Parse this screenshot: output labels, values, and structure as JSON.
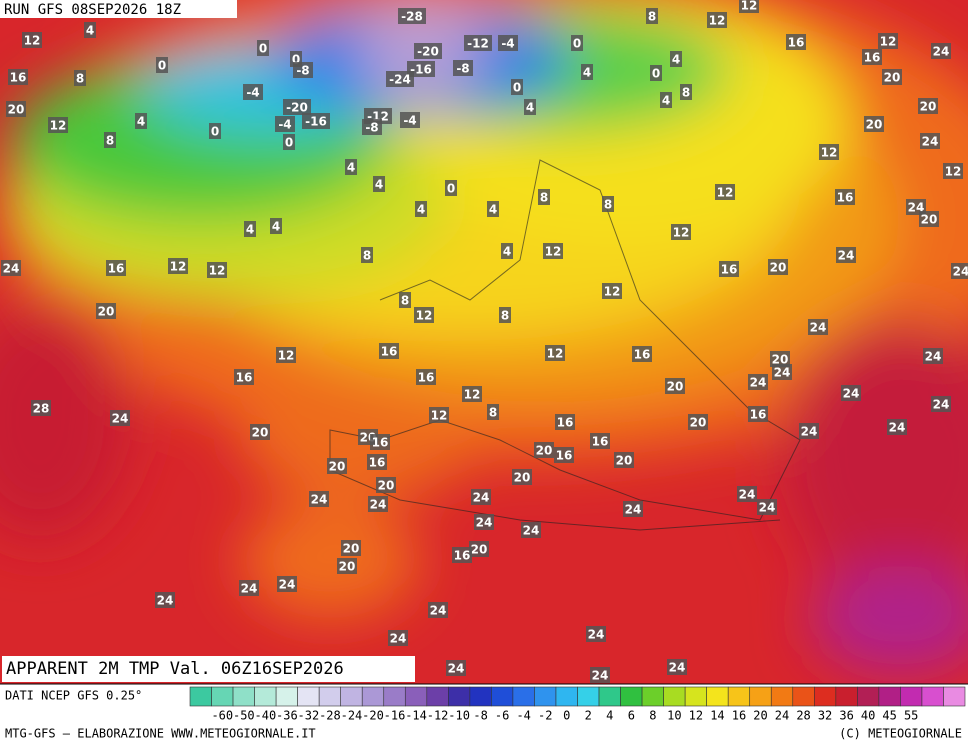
{
  "header": {
    "run": "RUN GFS 08SEP2026 18Z"
  },
  "footer": {
    "title": "APPARENT 2M TMP Val. 06Z16SEP2026"
  },
  "map": {
    "labels": [
      "4",
      "12",
      "16",
      "8",
      "0",
      "0",
      "0",
      "-8",
      "-28",
      "-20",
      "-12",
      "-4",
      "-16",
      "-8",
      "-24",
      "0",
      "8",
      "12",
      "12",
      "16",
      "12",
      "24",
      "16",
      "20",
      "4",
      "0",
      "4",
      "8",
      "4",
      "4",
      "0",
      "-4",
      "4",
      "12",
      "20",
      "8",
      "0",
      "-20",
      "-4",
      "-16",
      "-12",
      "-8",
      "-4",
      "0",
      "20",
      "20",
      "24",
      "12",
      "12",
      "4",
      "4",
      "0",
      "8",
      "8",
      "12",
      "16",
      "24",
      "20",
      "4",
      "4",
      "4",
      "4",
      "12",
      "8",
      "4",
      "12",
      "24",
      "24",
      "16",
      "12",
      "12",
      "16",
      "20",
      "24",
      "12",
      "8",
      "20",
      "12",
      "8",
      "24",
      "12",
      "16",
      "12",
      "16",
      "20",
      "24",
      "24",
      "24",
      "16",
      "16",
      "12",
      "20",
      "24",
      "28",
      "24",
      "8",
      "12",
      "16",
      "24",
      "20",
      "20",
      "16",
      "16",
      "20",
      "24",
      "24",
      "16",
      "20",
      "16",
      "16",
      "20",
      "20",
      "20",
      "20",
      "24",
      "24",
      "24",
      "24",
      "24",
      "24",
      "24",
      "24",
      "20",
      "20",
      "16",
      "20",
      "24",
      "24",
      "24",
      "24",
      "24",
      "24",
      "24",
      "24",
      "24"
    ]
  },
  "legend": {
    "source": "DATI NCEP GFS 0.25°",
    "swatch_colors": [
      "#3cc9a0",
      "#66d6b4",
      "#8fe0c8",
      "#b4ead9",
      "#d6f2ea",
      "#e4e4f4",
      "#d2cdec",
      "#c0b4e2",
      "#ab98d6",
      "#9a7cc8",
      "#8a5fba",
      "#6c3fa8",
      "#3d2fa8",
      "#2233c0",
      "#1f4ed8",
      "#2a6fe8",
      "#2f93ee",
      "#2fb6f0",
      "#35d0e8",
      "#2fc88a",
      "#30c040",
      "#6ccf2a",
      "#a8dc22",
      "#d6e41e",
      "#f4e41c",
      "#f7c419",
      "#f6a116",
      "#f27a14",
      "#ea5318",
      "#dd2d20",
      "#c91f2e",
      "#b21f55",
      "#b11f86",
      "#c22bb0",
      "#d84fcf",
      "#e98be2"
    ],
    "ticks": [
      "-60",
      "-50",
      "-40",
      "-36",
      "-32",
      "-28",
      "-24",
      "-20",
      "-16",
      "-14",
      "-12",
      "-10",
      "-8",
      "-6",
      "-4",
      "-2",
      "0",
      "2",
      "4",
      "6",
      "8",
      "10",
      "12",
      "14",
      "16",
      "20",
      "24",
      "28",
      "32",
      "36",
      "40",
      "45",
      "55"
    ]
  },
  "credits": {
    "left": "MTG-GFS — ELABORAZIONE WWW.METEOGIORNALE.IT",
    "right": "(C) METEOGIORNALE"
  }
}
